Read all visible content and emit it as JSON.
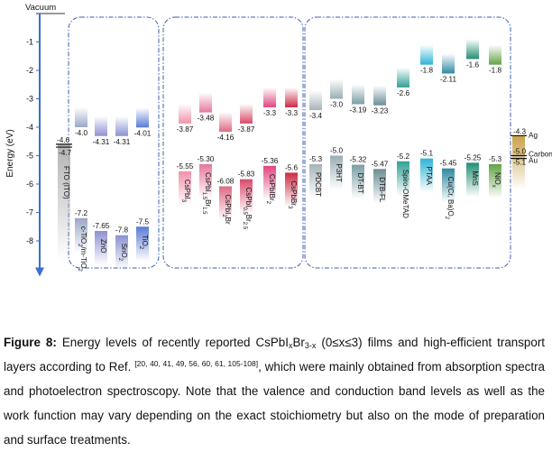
{
  "chart_data": {
    "type": "energy-level-diagram",
    "vacuum_label": "Vacuum",
    "ylabel": "Energy (eV)",
    "ylim": [
      -9.0,
      0.0
    ],
    "yticks": [
      -1,
      -2,
      -3,
      -4,
      -5,
      -6,
      -7,
      -8
    ],
    "ytick_labels": [
      "-1",
      "-2",
      "-3",
      "-4",
      "-5",
      "-6",
      "-7",
      "-8"
    ],
    "groups": [
      "electron-transport-layers",
      "perovskites",
      "hole-transport-layers"
    ],
    "electrode": {
      "name": "FTO (ITO)",
      "wf_1": -4.6,
      "wf_2": -4.7,
      "label_1": "-4.6",
      "label_2": "-4.7",
      "color": "#b3b3b3"
    },
    "materials": [
      {
        "name": "c-TiO2/m-TiO2",
        "group": 0,
        "cb": -4.0,
        "vb": -7.2,
        "cb_label": "-4.0",
        "vb_label": "-7.2",
        "color": "#9aa7c7"
      },
      {
        "name": "ZnO",
        "group": 0,
        "cb": -4.31,
        "vb": -7.65,
        "cb_label": "-4.31",
        "vb_label": "-7.65",
        "color": "#8f91d2"
      },
      {
        "name": "SnO2",
        "group": 0,
        "cb": -4.31,
        "vb": -7.8,
        "cb_label": "-4.31",
        "vb_label": "-7.8",
        "color": "#8a93cf"
      },
      {
        "name": "TiO2",
        "group": 0,
        "cb": -4.01,
        "vb": -7.5,
        "cb_label": "-4.01",
        "vb_label": "-7.5",
        "color": "#5a7bd6"
      },
      {
        "name": "CsPbI3",
        "group": 1,
        "cb": -3.87,
        "vb": -5.55,
        "cb_label": "-3.87",
        "vb_label": "-5.55",
        "color": "#ef93aa"
      },
      {
        "name": "CsPbI1.5Br1.5",
        "group": 1,
        "cb": -3.48,
        "vb": -5.3,
        "cb_label": "-3.48",
        "vb_label": "-5.30",
        "color": "#e6789b"
      },
      {
        "name": "CsPbI2Br",
        "group": 1,
        "cb": -4.16,
        "vb": -6.08,
        "cb_label": "-4.16",
        "vb_label": "-6.08",
        "color": "#dd6b84"
      },
      {
        "name": "CsPbI0.5Br2.5",
        "group": 1,
        "cb": -3.87,
        "vb": -5.83,
        "cb_label": "-3.87",
        "vb_label": "-5.83",
        "color": "#d84a6a"
      },
      {
        "name": "CsPbIBr2",
        "group": 1,
        "cb": -3.3,
        "vb": -5.36,
        "cb_label": "-3.3",
        "vb_label": "-5.36",
        "color": "#e0457f"
      },
      {
        "name": "CsPbBr3",
        "group": 1,
        "cb": -3.3,
        "vb": -5.6,
        "cb_label": "-3.3",
        "vb_label": "-5.6",
        "color": "#cc2a44"
      },
      {
        "name": "PDCBT",
        "group": 2,
        "cb": -3.4,
        "vb": -5.3,
        "cb_label": "-3.4",
        "vb_label": "-5.3",
        "color": "#a7b3b8"
      },
      {
        "name": "P3HT",
        "group": 2,
        "cb": -3.0,
        "vb": -5.0,
        "cb_label": "-3.0",
        "vb_label": "-5.0",
        "color": "#99adb3"
      },
      {
        "name": "DT-BT",
        "group": 2,
        "cb": -3.19,
        "vb": -5.32,
        "cb_label": "-3.19",
        "vb_label": "-5.32",
        "color": "#7a9ea6"
      },
      {
        "name": "DTB-FL",
        "group": 2,
        "cb": -3.23,
        "vb": -5.47,
        "cb_label": "-3.23",
        "vb_label": "-5.47",
        "color": "#6b8e96"
      },
      {
        "name": "Spiro-OMeTAD",
        "group": 2,
        "cb": -2.6,
        "vb": -5.2,
        "cb_label": "-2.6",
        "vb_label": "-5.2",
        "color": "#2fa195"
      },
      {
        "name": "PTAA",
        "group": 2,
        "cb": -1.8,
        "vb": -5.1,
        "cb_label": "-1.8",
        "vb_label": "-5.1",
        "color": "#2eb4d6"
      },
      {
        "name": "Cu(Cr, Ba)O2",
        "group": 2,
        "cb": -2.11,
        "vb": -5.45,
        "cb_label": "-2.11",
        "vb_label": "-5.45",
        "color": "#2f8aa3"
      },
      {
        "name": "MnS",
        "group": 2,
        "cb": -1.6,
        "vb": -5.25,
        "cb_label": "-1.6",
        "vb_label": "-5.25",
        "color": "#238f74"
      },
      {
        "name": "NiOx",
        "group": 2,
        "cb": -1.8,
        "vb": -5.3,
        "cb_label": "-1.8",
        "vb_label": "-5.3",
        "color": "#63a347"
      }
    ],
    "counter_electrodes": {
      "levels": [
        {
          "name": "Ag",
          "value": -4.3,
          "label": "-4.3"
        },
        {
          "name": "Carbon",
          "value": -5.0,
          "label": "-5.0"
        },
        {
          "name": "Au",
          "value": -5.1,
          "label": "-5.1"
        }
      ],
      "color": "#c9a24a"
    }
  },
  "caption": {
    "figure_label": "Figure 8:",
    "text_1": " Energy levels of recently reported CsPbI",
    "sub_x": "x",
    "text_2": "Br",
    "sub_3x": "3-x",
    "text_3": " (0≤x≤3) films and high-efficient transport layers according to Ref. ",
    "refs": "[20, 40, 41, 49, 56, 60, 61, 105-108]",
    "text_4": ", which were mainly obtained from absorption spectra and photoelectron spectroscopy. Note that the valence and conduction band levels as well as the work function may vary depending on the exact stoichiometry but also on the mode of preparation and surface treatments."
  }
}
